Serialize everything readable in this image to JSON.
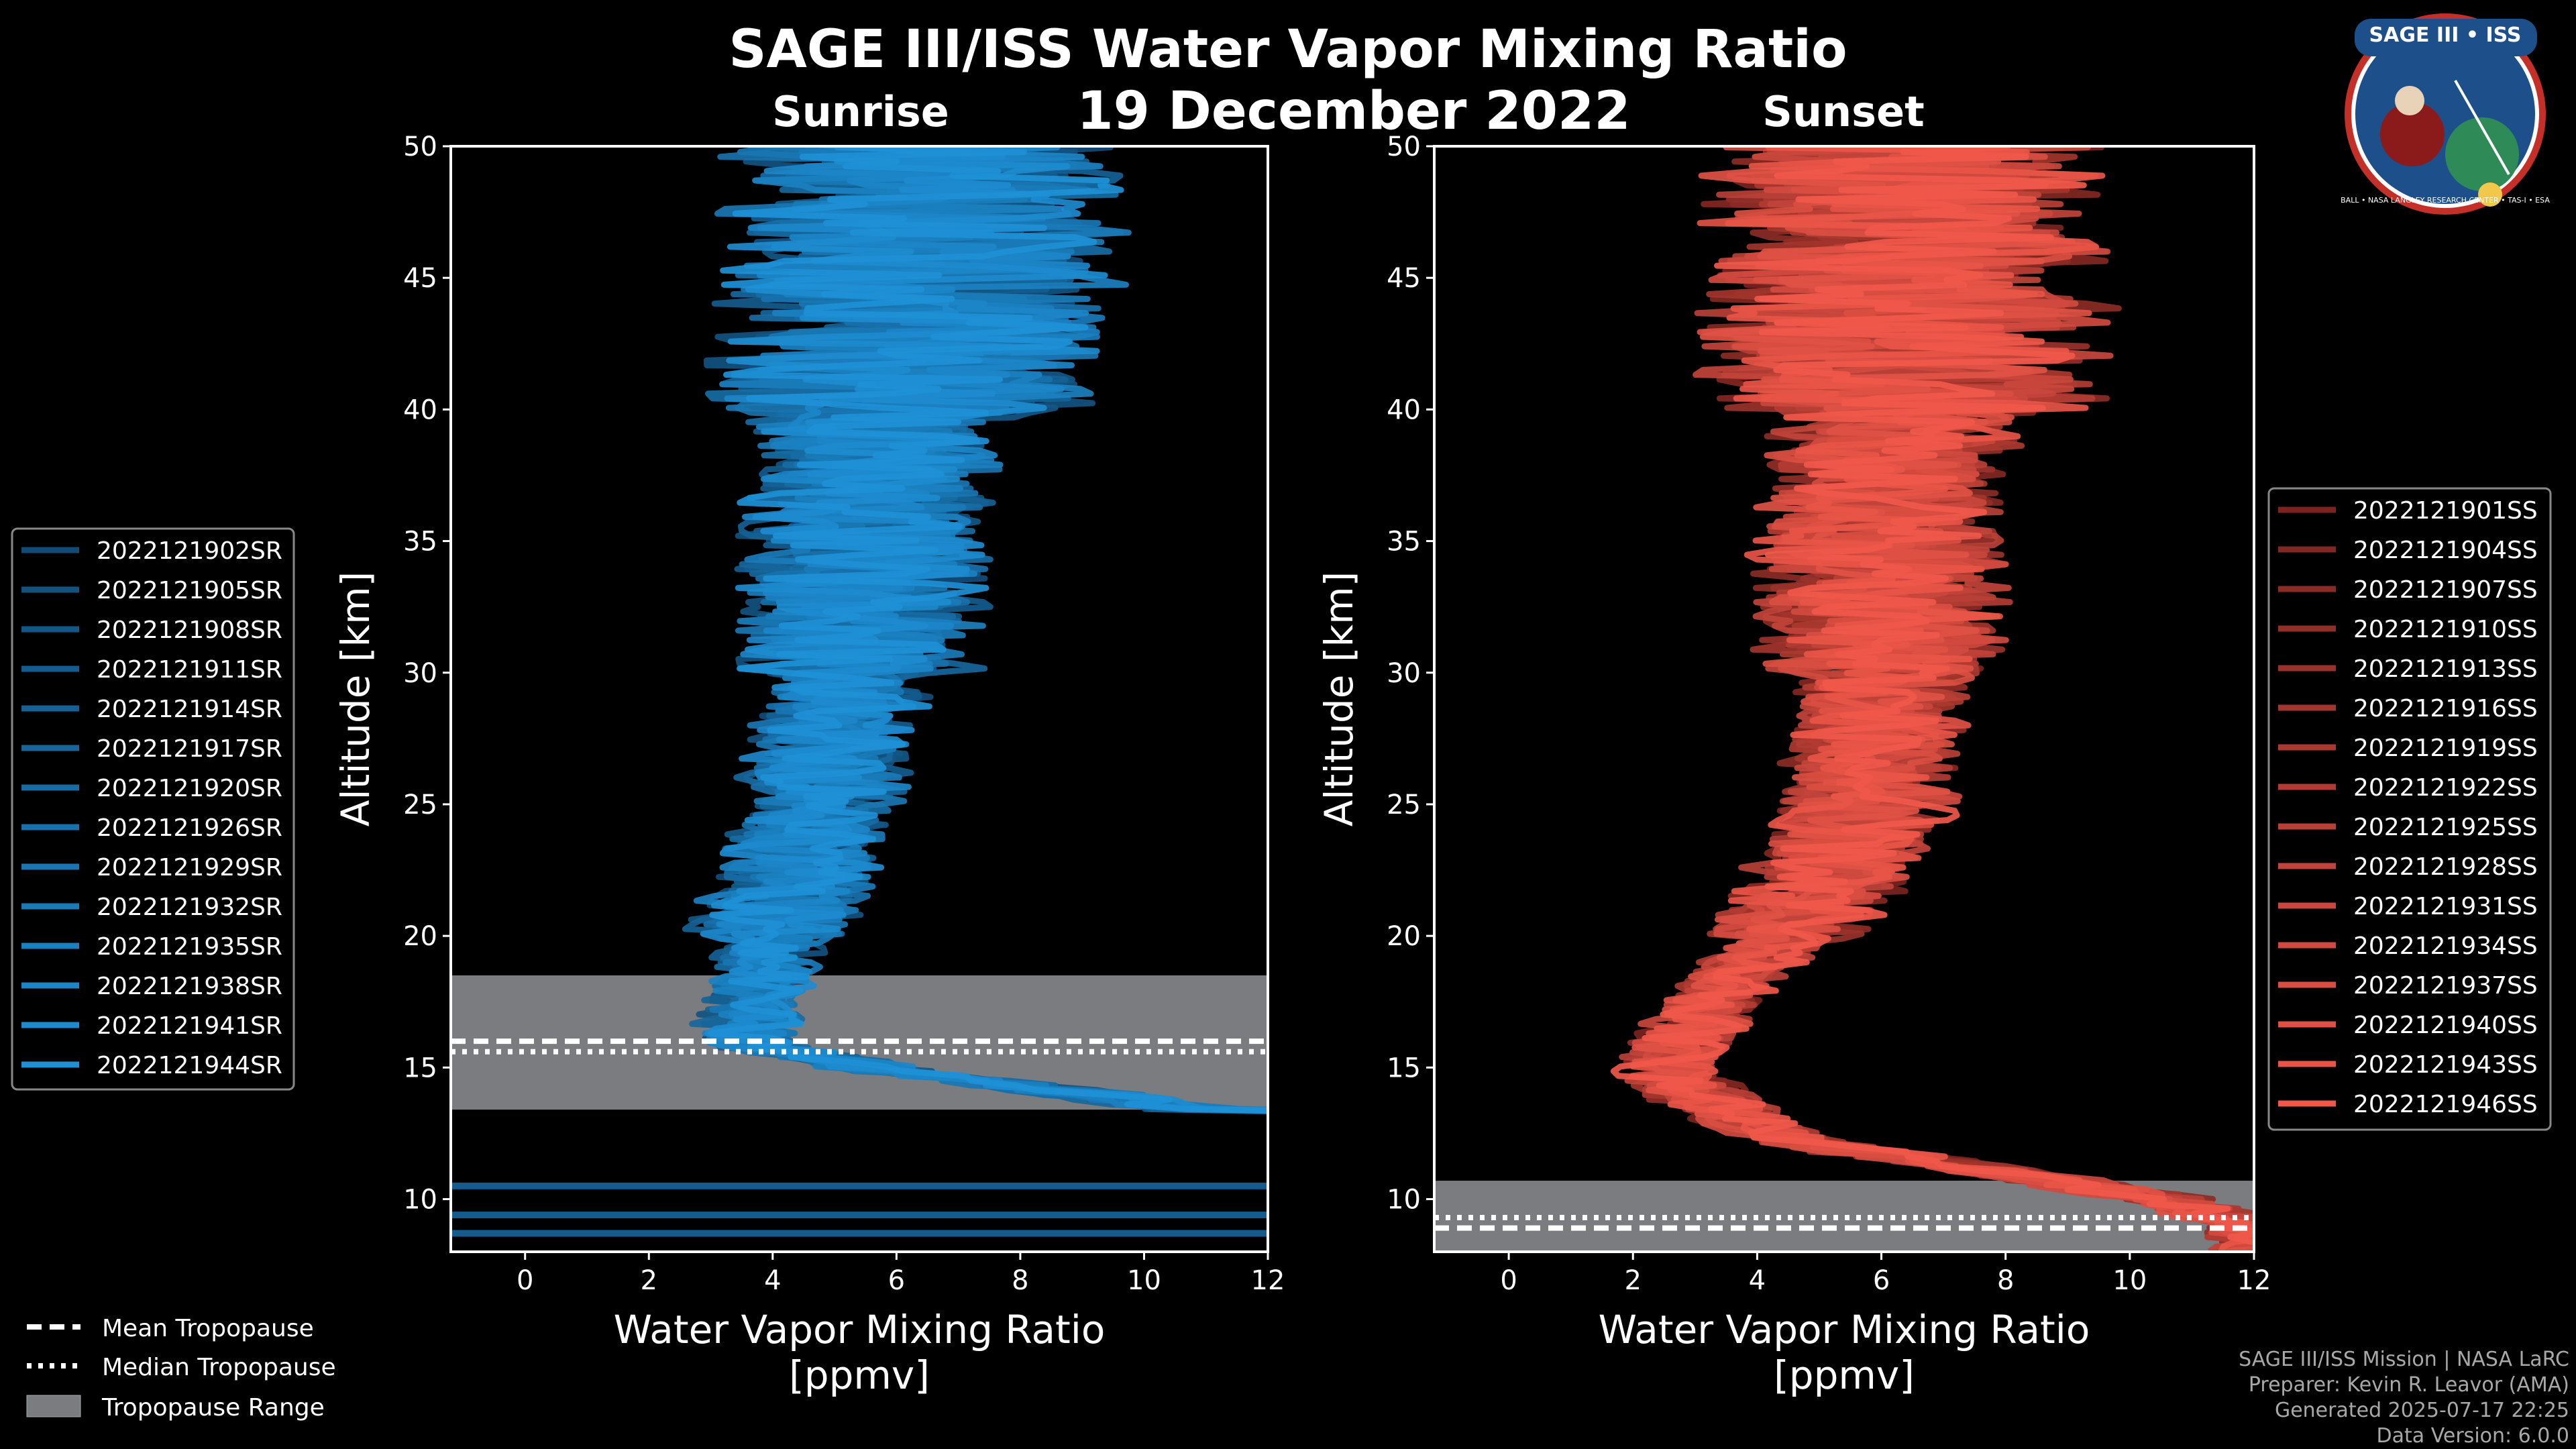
{
  "title": "SAGE III/ISS Water Vapor Mixing Ratio",
  "date": "19 December 2022",
  "badge": {
    "top_text": "SAGE III • ISS",
    "ring_text": "BALL • NASA LANGLEY RESEARCH CENTER • TAS-I • ESA"
  },
  "colors": {
    "sunrise": "#1e90d6",
    "sunset": "#f0584a",
    "tropopause_range": "#7a7c80"
  },
  "chart_data": [
    {
      "type": "line",
      "panel": "Sunrise",
      "title": "Sunrise",
      "xlabel_line1": "Water Vapor Mixing Ratio",
      "xlabel_line2": "[ppmv]",
      "ylabel": "Altitude [km]",
      "xlim": [
        -1.2,
        12
      ],
      "ylim": [
        8,
        50
      ],
      "xticks": [
        "0",
        "2",
        "4",
        "6",
        "8",
        "10",
        "12"
      ],
      "yticks": [
        "10",
        "15",
        "20",
        "25",
        "30",
        "35",
        "40",
        "45",
        "50"
      ],
      "series_names": [
        "2022121902SR",
        "2022121905SR",
        "2022121908SR",
        "2022121911SR",
        "2022121914SR",
        "2022121917SR",
        "2022121920SR",
        "2022121926SR",
        "2022121929SR",
        "2022121932SR",
        "2022121935SR",
        "2022121938SR",
        "2022121941SR",
        "2022121944SR"
      ],
      "mean_profile": {
        "altitude_km": [
          50,
          45,
          40,
          35,
          30,
          25,
          20,
          18,
          16,
          15,
          14,
          13
        ],
        "ppmv": [
          6.5,
          6.3,
          5.8,
          5.5,
          5.2,
          4.8,
          4.0,
          3.8,
          3.5,
          5.5,
          9.0,
          12.0
        ]
      },
      "tropopause": {
        "mean_km": 16.0,
        "median_km": 15.6,
        "range_km": [
          13.4,
          18.5
        ]
      },
      "low_altitude_lines_km": [
        10.5,
        9.4,
        8.7
      ]
    },
    {
      "type": "line",
      "panel": "Sunset",
      "title": "Sunset",
      "xlabel_line1": "Water Vapor Mixing Ratio",
      "xlabel_line2": "[ppmv]",
      "ylabel": "Altitude [km]",
      "xlim": [
        -1.2,
        12
      ],
      "ylim": [
        8,
        50
      ],
      "xticks": [
        "0",
        "2",
        "4",
        "6",
        "8",
        "10",
        "12"
      ],
      "yticks": [
        "10",
        "15",
        "20",
        "25",
        "30",
        "35",
        "40",
        "45",
        "50"
      ],
      "series_names": [
        "2022121901SS",
        "2022121904SS",
        "2022121907SS",
        "2022121910SS",
        "2022121913SS",
        "2022121916SS",
        "2022121919SS",
        "2022121922SS",
        "2022121925SS",
        "2022121928SS",
        "2022121931SS",
        "2022121934SS",
        "2022121937SS",
        "2022121940SS",
        "2022121943SS",
        "2022121946SS"
      ],
      "mean_profile": {
        "altitude_km": [
          50,
          45,
          40,
          35,
          30,
          25,
          20,
          18,
          16,
          15,
          14,
          13,
          12,
          11,
          10,
          9
        ],
        "ppmv": [
          6.5,
          6.3,
          6.3,
          6.0,
          6.0,
          5.8,
          4.5,
          3.5,
          2.8,
          2.5,
          3.0,
          3.8,
          5.0,
          8.0,
          10.5,
          12.0
        ]
      },
      "tropopause": {
        "mean_km": 8.9,
        "median_km": 9.3,
        "range_km": [
          8.0,
          10.7
        ]
      }
    }
  ],
  "legend_bottom": [
    "Mean Tropopause",
    "Median Tropopause",
    "Tropopause Range"
  ],
  "credits": [
    "SAGE III/ISS Mission | NASA LaRC",
    "Preparer: Kevin R. Leavor (AMA)",
    "Generated 2025-07-17 22:25",
    "Data Version: 6.0.0"
  ]
}
